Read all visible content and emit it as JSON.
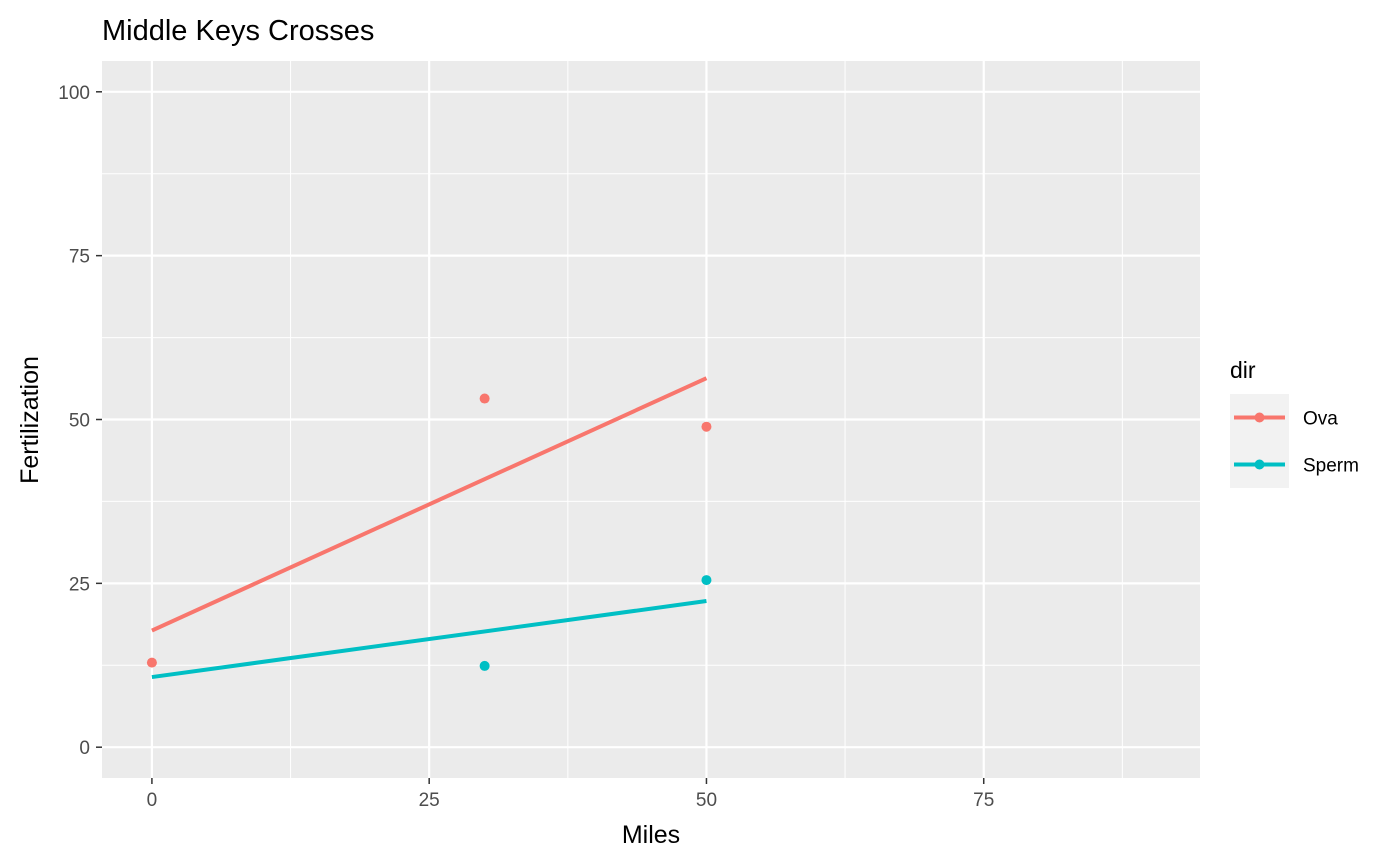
{
  "chart_data": {
    "type": "scatter",
    "title": "Middle Keys Crosses",
    "xlabel": "Miles",
    "ylabel": "Fertilization",
    "xlim": [
      -4.5,
      94.5
    ],
    "ylim": [
      -4.7,
      104.7
    ],
    "x_ticks": [
      0,
      25,
      50,
      75
    ],
    "x_tick_labels": [
      "0",
      "25",
      "50",
      "75"
    ],
    "x_minor": [
      12.5,
      37.5,
      62.5,
      87.5
    ],
    "y_ticks": [
      0,
      25,
      50,
      75,
      100
    ],
    "y_tick_labels": [
      "0",
      "25",
      "50",
      "75",
      "100"
    ],
    "y_minor": [
      12.5,
      37.5,
      62.5,
      87.5
    ],
    "grid": true,
    "legend": {
      "title": "dir",
      "placement": "right"
    },
    "series": [
      {
        "name": "Ova",
        "color": "#f8766d",
        "points": [
          {
            "x": 0,
            "y": 12.9
          },
          {
            "x": 30,
            "y": 53.2
          },
          {
            "x": 50,
            "y": 48.9
          }
        ],
        "fit": [
          {
            "x": 0,
            "y": 17.8
          },
          {
            "x": 50,
            "y": 56.3
          }
        ]
      },
      {
        "name": "Sperm",
        "color": "#00bfc4",
        "points": [
          {
            "x": 30,
            "y": 12.4
          },
          {
            "x": 50,
            "y": 25.5
          }
        ],
        "fit": [
          {
            "x": 0,
            "y": 10.7
          },
          {
            "x": 50,
            "y": 22.3
          }
        ]
      }
    ]
  },
  "theme": {
    "panel_background": "#ebebeb",
    "grid_color": "#ffffff",
    "legend_key_background": "#f2f2f2"
  }
}
